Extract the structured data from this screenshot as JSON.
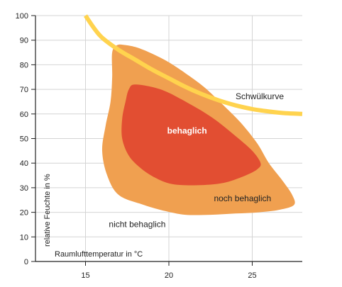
{
  "chart_data": {
    "type": "area",
    "title": "",
    "xlabel": "Raumlufttemperatur in °C",
    "ylabel": "relative Feuchte in %",
    "xlim": [
      12,
      28
    ],
    "ylim": [
      0,
      100
    ],
    "x_ticks": [
      15,
      20,
      25
    ],
    "y_ticks": [
      0,
      10,
      20,
      30,
      40,
      50,
      60,
      70,
      80,
      90,
      100
    ],
    "grid": true,
    "regions": [
      {
        "name": "noch behaglich",
        "color": "#F0A050",
        "points": [
          [
            16.9,
            88
          ],
          [
            17.4,
            88
          ],
          [
            18.1,
            87
          ],
          [
            19,
            84.5
          ],
          [
            20,
            81
          ],
          [
            21,
            76.5
          ],
          [
            22.1,
            71
          ],
          [
            23.2,
            64
          ],
          [
            24.3,
            56.5
          ],
          [
            25.3,
            48
          ],
          [
            26,
            40
          ],
          [
            26.8,
            33
          ],
          [
            27.4,
            27
          ],
          [
            27.5,
            23
          ],
          [
            26.6,
            21
          ],
          [
            25.4,
            20
          ],
          [
            24,
            19.5
          ],
          [
            22.5,
            19
          ],
          [
            21,
            19
          ],
          [
            19.8,
            20.5
          ],
          [
            18.5,
            23
          ],
          [
            17,
            27
          ],
          [
            16.3,
            35
          ],
          [
            16,
            45
          ],
          [
            16.2,
            55
          ],
          [
            16.5,
            65
          ],
          [
            16.6,
            75
          ],
          [
            16.6,
            85
          ]
        ]
      },
      {
        "name": "behaglich",
        "color": "#E24E32",
        "points": [
          [
            18,
            72
          ],
          [
            19.5,
            70
          ],
          [
            21,
            65
          ],
          [
            22.6,
            58.5
          ],
          [
            24,
            51
          ],
          [
            25,
            45
          ],
          [
            25.5,
            40
          ],
          [
            25.3,
            37.5
          ],
          [
            24.6,
            35
          ],
          [
            23.3,
            32
          ],
          [
            21.7,
            31
          ],
          [
            20.2,
            31.5
          ],
          [
            19.2,
            34
          ],
          [
            18.3,
            38
          ],
          [
            17.6,
            43
          ],
          [
            17.2,
            50
          ],
          [
            17.2,
            58
          ],
          [
            17.4,
            65
          ],
          [
            17.6,
            70
          ]
        ]
      }
    ],
    "curve": {
      "name": "Schwülkurve",
      "color": "#FFD34E",
      "points": [
        [
          15,
          100
        ],
        [
          15.5,
          95
        ],
        [
          16,
          91
        ],
        [
          17,
          86
        ],
        [
          18,
          82
        ],
        [
          19,
          78
        ],
        [
          20,
          74.5
        ],
        [
          21,
          71
        ],
        [
          22,
          68
        ],
        [
          23,
          65.5
        ],
        [
          24,
          63.5
        ],
        [
          25,
          62
        ],
        [
          26,
          61
        ],
        [
          27,
          60.3
        ],
        [
          28,
          60
        ]
      ]
    },
    "annotations": [
      {
        "text": "Schwülkurve",
        "x": 24,
        "y": 66
      },
      {
        "text": "behaglich",
        "x": 19.9,
        "y": 52
      },
      {
        "text": "noch behaglich",
        "x": 22.7,
        "y": 24.5
      },
      {
        "text": "nicht behaglich",
        "x": 16.4,
        "y": 14
      }
    ]
  }
}
